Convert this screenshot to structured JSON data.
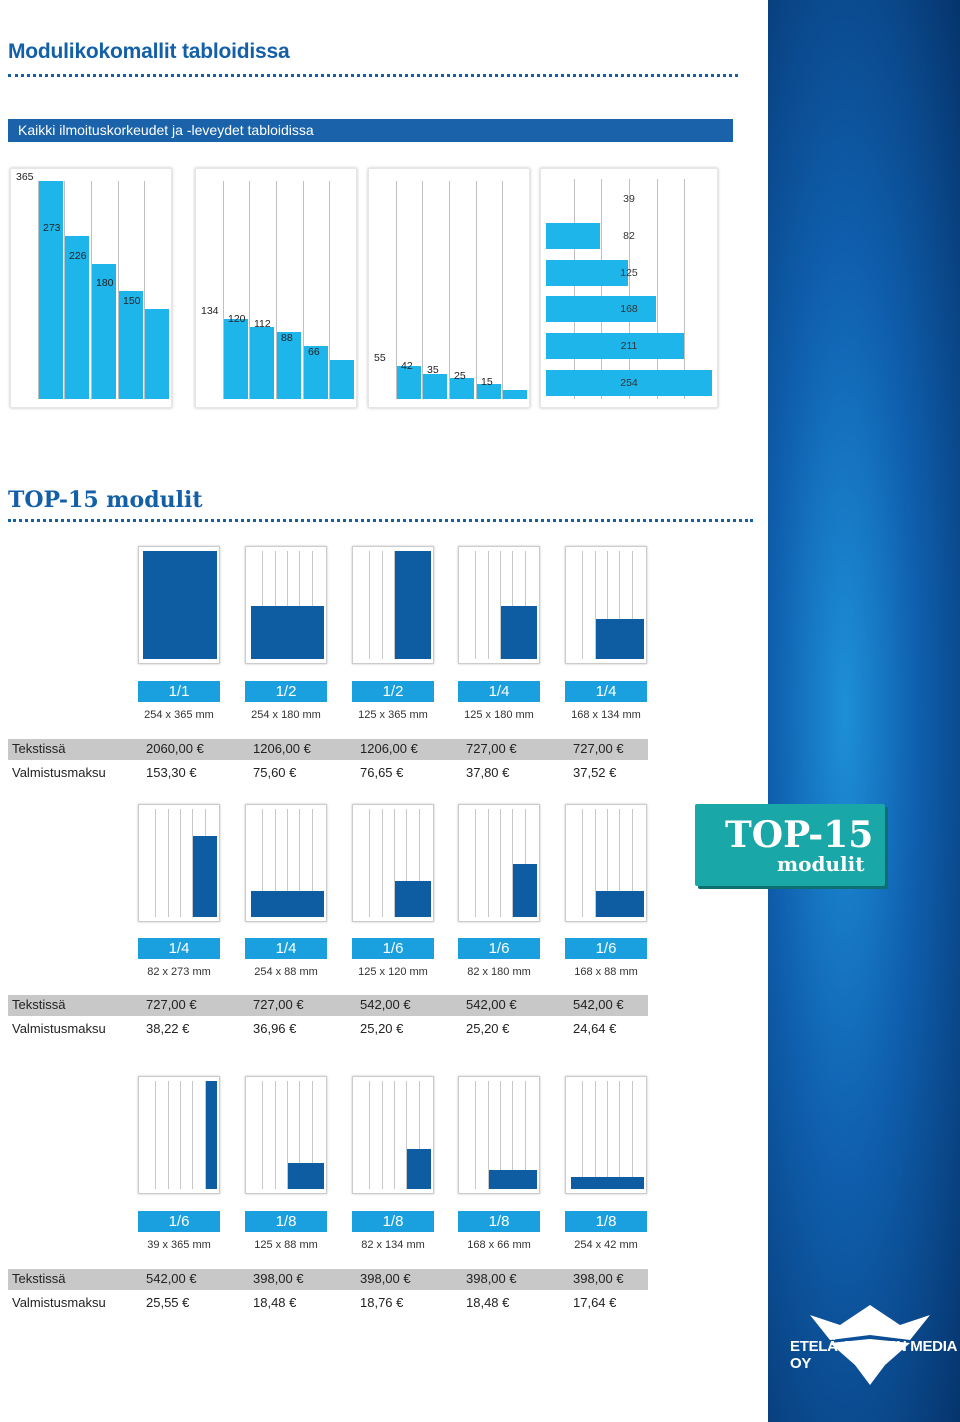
{
  "header": {
    "title": "Modulikokomallit tabloidissa",
    "subtitle": "Kaikki ilmoituskorkeudet ja -leveydet tabloidissa"
  },
  "heights_panel1": [
    "365",
    "273",
    "226",
    "180",
    "150"
  ],
  "heights_panel2": [
    "134",
    "120",
    "112",
    "88",
    "66"
  ],
  "heights_panel3": [
    "55",
    "42",
    "35",
    "25",
    "15"
  ],
  "widths_panel4": [
    "39",
    "82",
    "125",
    "168",
    "211",
    "254"
  ],
  "section2": {
    "title": "TOP-15 modulit"
  },
  "badge": {
    "line1": "TOP-15",
    "line2": "modulit"
  },
  "row_labels": {
    "text": "Tekstissä",
    "prep": "Valmistusmaksu"
  },
  "modules_row1": [
    {
      "fraction": "1/1",
      "dims": "254 x 365 mm",
      "text_price": "2060,00 €",
      "prep_price": "153,30 €"
    },
    {
      "fraction": "1/2",
      "dims": "254 x 180 mm",
      "text_price": "1206,00 €",
      "prep_price": "75,60 €"
    },
    {
      "fraction": "1/2",
      "dims": "125 x 365 mm",
      "text_price": "1206,00 €",
      "prep_price": "76,65 €"
    },
    {
      "fraction": "1/4",
      "dims": "125 x 180 mm",
      "text_price": "727,00 €",
      "prep_price": "37,80 €"
    },
    {
      "fraction": "1/4",
      "dims": "168 x 134 mm",
      "text_price": "727,00 €",
      "prep_price": "37,52 €"
    }
  ],
  "modules_row2": [
    {
      "fraction": "1/4",
      "dims": "82 x 273 mm",
      "text_price": "727,00 €",
      "prep_price": "38,22 €"
    },
    {
      "fraction": "1/4",
      "dims": "254 x 88 mm",
      "text_price": "727,00 €",
      "prep_price": "36,96 €"
    },
    {
      "fraction": "1/6",
      "dims": "125 x 120 mm",
      "text_price": "542,00 €",
      "prep_price": "25,20 €"
    },
    {
      "fraction": "1/6",
      "dims": "82 x 180 mm",
      "text_price": "542,00 €",
      "prep_price": "25,20 €"
    },
    {
      "fraction": "1/6",
      "dims": "168 x 88 mm",
      "text_price": "542,00 €",
      "prep_price": "24,64 €"
    }
  ],
  "modules_row3": [
    {
      "fraction": "1/6",
      "dims": "39 x 365 mm",
      "text_price": "542,00 €",
      "prep_price": "25,55 €"
    },
    {
      "fraction": "1/8",
      "dims": "125 x 88 mm",
      "text_price": "398,00 €",
      "prep_price": "18,48 €"
    },
    {
      "fraction": "1/8",
      "dims": "82 x 134 mm",
      "text_price": "398,00 €",
      "prep_price": "18,76 €"
    },
    {
      "fraction": "1/8",
      "dims": "168 x 66 mm",
      "text_price": "398,00 €",
      "prep_price": "18,48 €"
    },
    {
      "fraction": "1/8",
      "dims": "254 x 42 mm",
      "text_price": "398,00 €",
      "prep_price": "17,64 €"
    }
  ],
  "brand": {
    "name": "ETELÄ-SUOMEN MEDIA OY"
  },
  "colors": {
    "primary_blue": "#1360a8",
    "light_blue": "#1eb5ea",
    "fill_blue": "#0e5da3",
    "teal": "#1aa7a8"
  }
}
